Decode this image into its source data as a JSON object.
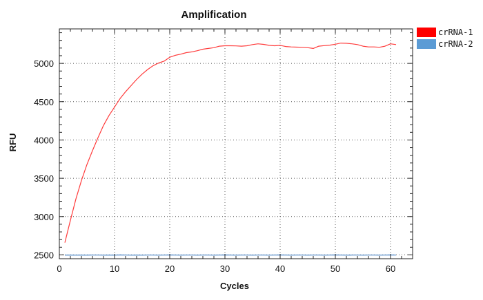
{
  "chart_data": {
    "type": "line",
    "title": "Amplification",
    "xlabel": "Cycles",
    "ylabel": "RFU",
    "xlim": [
      0,
      64
    ],
    "ylim": [
      2450,
      5450
    ],
    "xticks": [
      0,
      10,
      20,
      30,
      40,
      50,
      60
    ],
    "yticks": [
      2500,
      3000,
      3500,
      4000,
      4500,
      5000
    ],
    "grid": true,
    "legend_position": "top-right-outside",
    "series": [
      {
        "name": "crRNA-1",
        "color": "#ff3b3b",
        "legend_color": "#ff0000",
        "x": [
          1,
          2,
          3,
          4,
          5,
          6,
          7,
          8,
          9,
          10,
          11,
          12,
          13,
          14,
          15,
          16,
          17,
          18,
          19,
          20,
          21,
          22,
          23,
          24,
          25,
          26,
          27,
          28,
          29,
          30,
          31,
          32,
          33,
          34,
          35,
          36,
          37,
          38,
          39,
          40,
          41,
          42,
          43,
          44,
          45,
          46,
          47,
          48,
          49,
          50,
          51,
          52,
          53,
          54,
          55,
          56,
          57,
          58,
          59,
          60,
          61
        ],
        "values": [
          2660,
          2950,
          3230,
          3470,
          3680,
          3860,
          4030,
          4190,
          4320,
          4430,
          4540,
          4630,
          4710,
          4790,
          4860,
          4920,
          4970,
          5005,
          5030,
          5080,
          5105,
          5120,
          5140,
          5150,
          5165,
          5185,
          5195,
          5205,
          5225,
          5230,
          5230,
          5228,
          5225,
          5230,
          5245,
          5255,
          5248,
          5235,
          5230,
          5235,
          5220,
          5215,
          5212,
          5210,
          5205,
          5195,
          5225,
          5232,
          5238,
          5250,
          5265,
          5262,
          5255,
          5245,
          5225,
          5215,
          5215,
          5210,
          5225,
          5255,
          5245
        ]
      },
      {
        "name": "crRNA-2",
        "color": "#4a86c8",
        "legend_color": "#5b9bd5",
        "x": [
          1,
          2,
          3,
          4,
          5,
          6,
          7,
          8,
          9,
          10,
          11,
          12,
          13,
          14,
          15,
          16,
          17,
          18,
          19,
          20,
          21,
          22,
          23,
          24,
          25,
          26,
          27,
          28,
          29,
          30,
          31,
          32,
          33,
          34,
          35,
          36,
          37,
          38,
          39,
          40,
          41,
          42,
          43,
          44,
          45,
          46,
          47,
          48,
          49,
          50,
          51,
          52,
          53,
          54,
          55,
          56,
          57,
          58,
          59,
          60,
          61
        ],
        "values": [
          2497,
          2498,
          2497,
          2498,
          2497,
          2498,
          2498,
          2497,
          2498,
          2497,
          2499,
          2498,
          2497,
          2498,
          2497,
          2498,
          2498,
          2497,
          2498,
          2499,
          2498,
          2497,
          2498,
          2498,
          2497,
          2498,
          2498,
          2497,
          2498,
          2499,
          2498,
          2497,
          2498,
          2498,
          2497,
          2498,
          2498,
          2497,
          2498,
          2499,
          2498,
          2497,
          2498,
          2498,
          2497,
          2498,
          2498,
          2497,
          2498,
          2499,
          2498,
          2497,
          2498,
          2498,
          2497,
          2498,
          2498,
          2497,
          2498,
          2499,
          2498
        ]
      }
    ]
  }
}
